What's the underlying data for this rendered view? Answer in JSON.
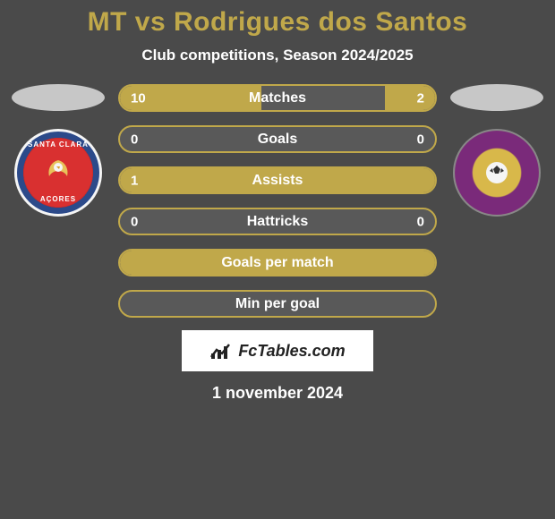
{
  "title": "MT vs Rodrigues dos Santos",
  "subtitle": "Club competitions, Season 2024/2025",
  "date": "1 november 2024",
  "footer": {
    "brand": "FcTables.com"
  },
  "colors": {
    "accent": "#c0a84a",
    "bar_bg": "#595959",
    "page_bg": "#4a4a4a",
    "text": "#ffffff"
  },
  "bars": [
    {
      "label": "Matches",
      "left": "10",
      "right": "2",
      "left_pct": 45,
      "right_pct": 16
    },
    {
      "label": "Goals",
      "left": "0",
      "right": "0",
      "left_pct": 0,
      "right_pct": 0
    },
    {
      "label": "Assists",
      "left": "1",
      "right": "",
      "left_pct": 100,
      "right_pct": 0
    },
    {
      "label": "Hattricks",
      "left": "0",
      "right": "0",
      "left_pct": 0,
      "right_pct": 0
    },
    {
      "label": "Goals per match",
      "left": "",
      "right": "",
      "left_pct": 100,
      "right_pct": 0
    },
    {
      "label": "Min per goal",
      "left": "",
      "right": "",
      "left_pct": 0,
      "right_pct": 0
    }
  ],
  "left_club": {
    "top_text": "SANTA CLARA",
    "bottom_text": "AÇORES"
  }
}
